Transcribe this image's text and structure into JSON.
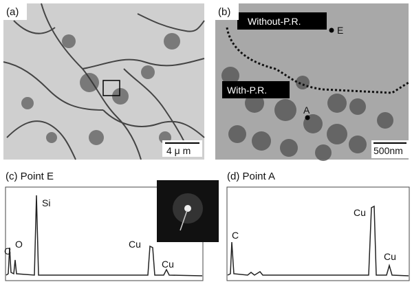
{
  "panels": [
    {
      "label": "(a)",
      "scale_bar": "4 μ m"
    },
    {
      "label": "(b)",
      "regions": [
        "Without-P.R.",
        "With-P.R."
      ],
      "points": [
        "E",
        "A"
      ],
      "scale_bar": "500nm"
    },
    {
      "label": "(c) Point E",
      "peaks": [
        "C",
        "O",
        "Si",
        "Cu",
        "Cu"
      ]
    },
    {
      "label": "(d) Point A",
      "peaks": [
        "C",
        "Cu",
        "Cu"
      ]
    }
  ]
}
